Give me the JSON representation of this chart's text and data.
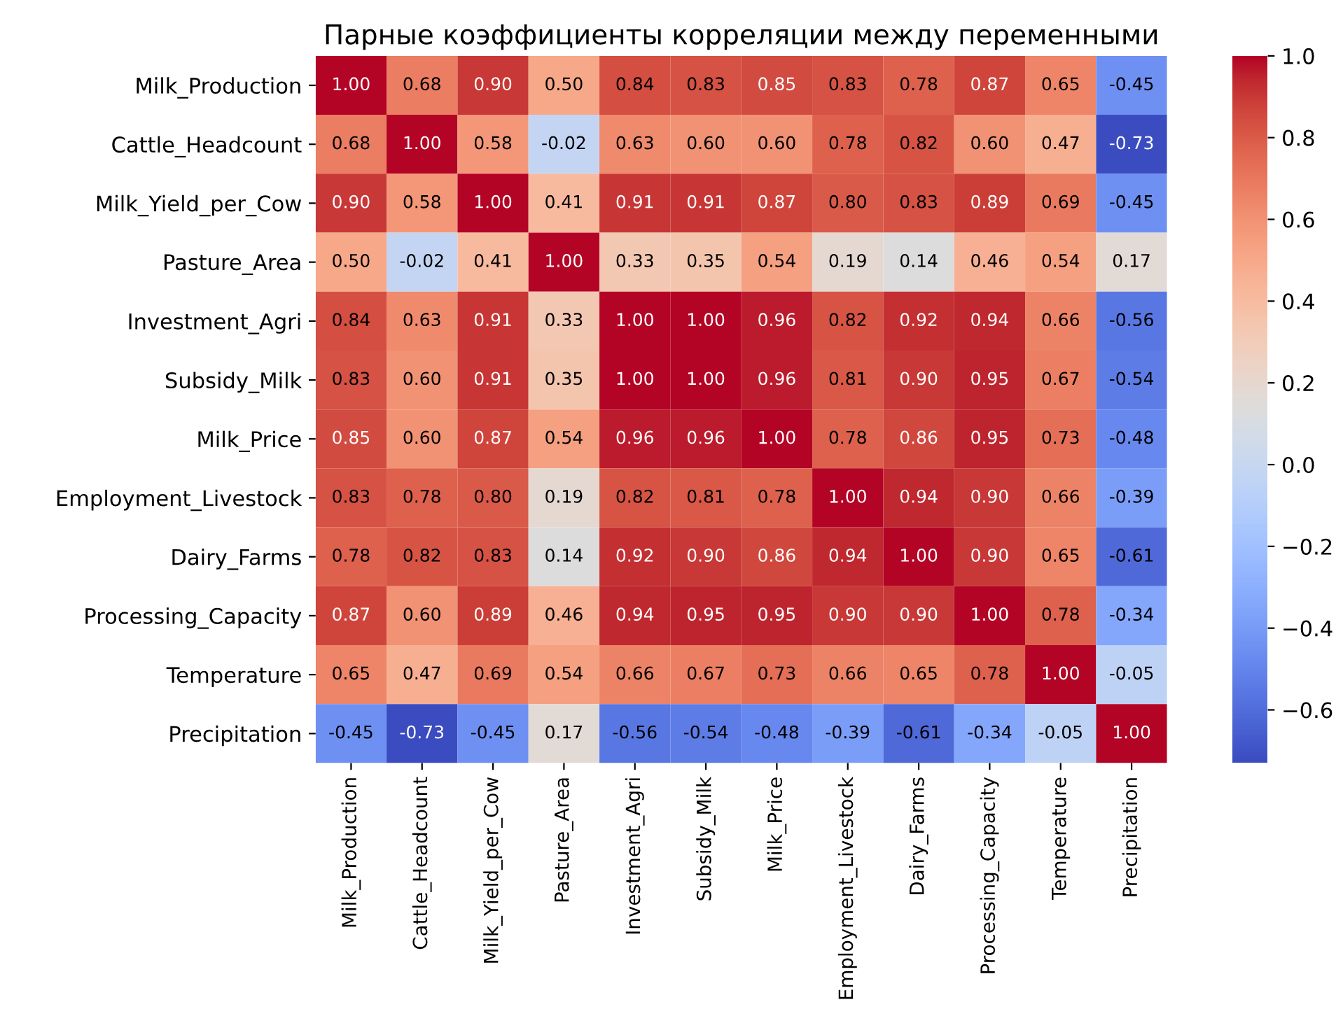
{
  "chart_data": {
    "type": "heatmap",
    "title": "Парные коэффициенты корреляции между переменными",
    "categories": [
      "Milk_Production",
      "Cattle_Headcount",
      "Milk_Yield_per_Cow",
      "Pasture_Area",
      "Investment_Agri",
      "Subsidy_Milk",
      "Milk_Price",
      "Employment_Livestock",
      "Dairy_Farms",
      "Processing_Capacity",
      "Temperature",
      "Precipitation"
    ],
    "y_categories": [
      "Milk_Production",
      "Cattle_Headcount",
      "Milk_Yield_per_Cow",
      "Pasture_Area",
      "Investment_Agri",
      "Subsidy_Milk",
      "Milk_Price",
      "Employment_Livestock",
      "Dairy_Farms",
      "Processing_Capacity",
      "Temperature",
      "Precipitation"
    ],
    "cells": [
      [
        1.0,
        0.68,
        0.9,
        0.5,
        0.84,
        0.83,
        0.85,
        0.83,
        0.78,
        0.87,
        0.65,
        -0.45
      ],
      [
        0.68,
        1.0,
        0.58,
        -0.02,
        0.63,
        0.6,
        0.6,
        0.78,
        0.82,
        0.6,
        0.47,
        -0.73
      ],
      [
        0.9,
        0.58,
        1.0,
        0.41,
        0.91,
        0.91,
        0.87,
        0.8,
        0.83,
        0.89,
        0.69,
        -0.45
      ],
      [
        0.5,
        -0.02,
        0.41,
        1.0,
        0.33,
        0.35,
        0.54,
        0.19,
        0.14,
        0.46,
        0.54,
        0.17
      ],
      [
        0.84,
        0.63,
        0.91,
        0.33,
        1.0,
        1.0,
        0.96,
        0.82,
        0.92,
        0.94,
        0.66,
        -0.56
      ],
      [
        0.83,
        0.6,
        0.91,
        0.35,
        1.0,
        1.0,
        0.96,
        0.81,
        0.9,
        0.95,
        0.67,
        -0.54
      ],
      [
        0.85,
        0.6,
        0.87,
        0.54,
        0.96,
        0.96,
        1.0,
        0.78,
        0.86,
        0.95,
        0.73,
        -0.48
      ],
      [
        0.83,
        0.78,
        0.8,
        0.19,
        0.82,
        0.81,
        0.78,
        1.0,
        0.94,
        0.9,
        0.66,
        -0.39
      ],
      [
        0.78,
        0.82,
        0.83,
        0.14,
        0.92,
        0.9,
        0.86,
        0.94,
        1.0,
        0.9,
        0.65,
        -0.61
      ],
      [
        0.87,
        0.6,
        0.89,
        0.46,
        0.94,
        0.95,
        0.95,
        0.9,
        0.9,
        1.0,
        0.78,
        -0.34
      ],
      [
        0.65,
        0.47,
        0.69,
        0.54,
        0.66,
        0.67,
        0.73,
        0.66,
        0.65,
        0.78,
        1.0,
        -0.05
      ],
      [
        -0.45,
        -0.73,
        -0.45,
        0.17,
        -0.56,
        -0.54,
        -0.48,
        -0.39,
        -0.61,
        -0.34,
        -0.05,
        1.0
      ]
    ],
    "cell_labels": [
      [
        "1.00",
        "0.68",
        "0.90",
        "0.50",
        "0.84",
        "0.83",
        "0.85",
        "0.83",
        "0.78",
        "0.87",
        "0.65",
        "-0.45"
      ],
      [
        "0.68",
        "1.00",
        "0.58",
        "-0.02",
        "0.63",
        "0.60",
        "0.60",
        "0.78",
        "0.82",
        "0.60",
        "0.47",
        "-0.73"
      ],
      [
        "0.90",
        "0.58",
        "1.00",
        "0.41",
        "0.91",
        "0.91",
        "0.87",
        "0.80",
        "0.83",
        "0.89",
        "0.69",
        "-0.45"
      ],
      [
        "0.50",
        "-0.02",
        "0.41",
        "1.00",
        "0.33",
        "0.35",
        "0.54",
        "0.19",
        "0.14",
        "0.46",
        "0.54",
        "0.17"
      ],
      [
        "0.84",
        "0.63",
        "0.91",
        "0.33",
        "1.00",
        "1.00",
        "0.96",
        "0.82",
        "0.92",
        "0.94",
        "0.66",
        "-0.56"
      ],
      [
        "0.83",
        "0.60",
        "0.91",
        "0.35",
        "1.00",
        "1.00",
        "0.96",
        "0.81",
        "0.90",
        "0.95",
        "0.67",
        "-0.54"
      ],
      [
        "0.85",
        "0.60",
        "0.87",
        "0.54",
        "0.96",
        "0.96",
        "1.00",
        "0.78",
        "0.86",
        "0.95",
        "0.73",
        "-0.48"
      ],
      [
        "0.83",
        "0.78",
        "0.80",
        "0.19",
        "0.82",
        "0.81",
        "0.78",
        "1.00",
        "0.94",
        "0.90",
        "0.66",
        "-0.39"
      ],
      [
        "0.78",
        "0.82",
        "0.83",
        "0.14",
        "0.92",
        "0.90",
        "0.86",
        "0.94",
        "1.00",
        "0.90",
        "0.65",
        "-0.61"
      ],
      [
        "0.87",
        "0.60",
        "0.89",
        "0.46",
        "0.94",
        "0.95",
        "0.95",
        "0.90",
        "0.90",
        "1.00",
        "0.78",
        "-0.34"
      ],
      [
        "0.65",
        "0.47",
        "0.69",
        "0.54",
        "0.66",
        "0.67",
        "0.73",
        "0.66",
        "0.65",
        "0.78",
        "1.00",
        "-0.05"
      ],
      [
        "-0.45",
        "-0.73",
        "-0.45",
        "0.17",
        "-0.56",
        "-0.54",
        "-0.48",
        "-0.39",
        "-0.61",
        "-0.34",
        "-0.05",
        "1.00"
      ]
    ],
    "clim": [
      -0.73,
      1.0
    ],
    "cticks": [
      {
        "value": -0.6,
        "label": "−0.6"
      },
      {
        "value": -0.4,
        "label": "−0.4"
      },
      {
        "value": -0.2,
        "label": "−0.2"
      },
      {
        "value": 0.0,
        "label": "0.0"
      },
      {
        "value": 0.2,
        "label": "0.2"
      },
      {
        "value": 0.4,
        "label": "0.4"
      },
      {
        "value": 0.6,
        "label": "0.6"
      },
      {
        "value": 0.8,
        "label": "0.8"
      },
      {
        "value": 1.0,
        "label": "1.0"
      }
    ]
  }
}
